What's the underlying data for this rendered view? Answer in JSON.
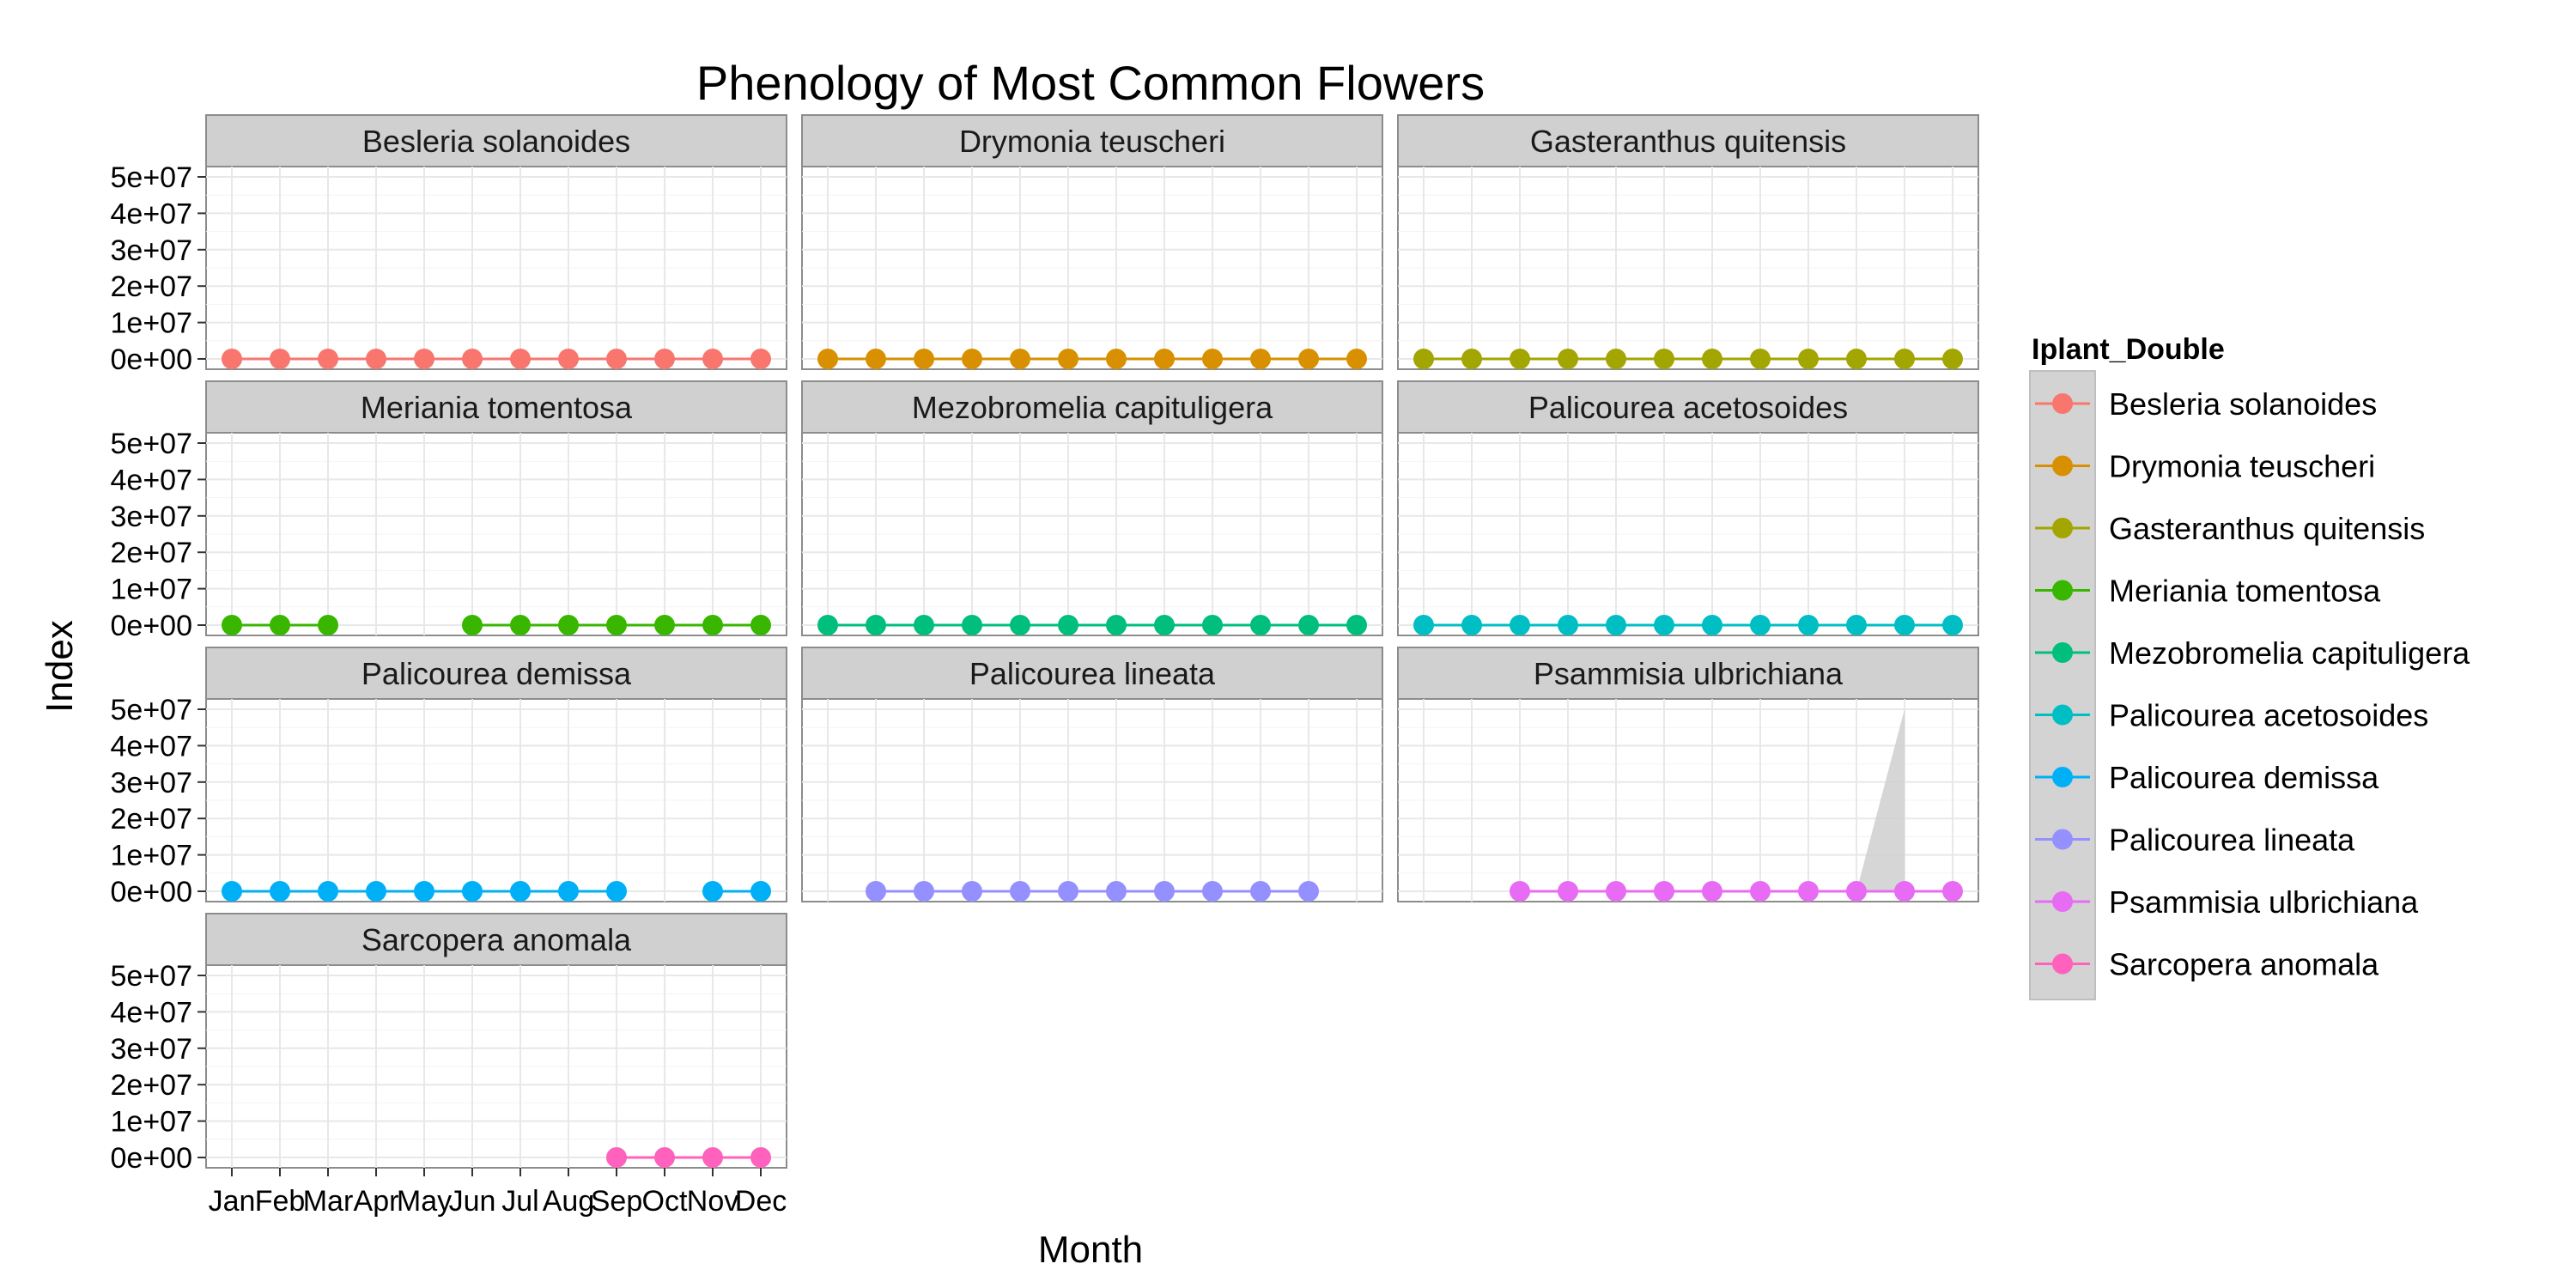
{
  "chart_data": {
    "type": "line",
    "title": "Phenology of Most Common Flowers",
    "xlabel": "Month",
    "ylabel": "Index",
    "categories": [
      "Jan",
      "Feb",
      "Mar",
      "Apr",
      "May",
      "Jun",
      "Jul",
      "Aug",
      "Sep",
      "Oct",
      "Nov",
      "Dec"
    ],
    "y_ticks": [
      "0e+00",
      "1e+07",
      "2e+07",
      "3e+07",
      "4e+07",
      "5e+07"
    ],
    "ylim": [
      0,
      50000000
    ],
    "grid": true,
    "legend": {
      "title": "Iplant_Double",
      "position": "right"
    },
    "series": [
      {
        "name": "Besleria solanoides",
        "color": "#F8766D",
        "values": [
          0,
          0,
          0,
          0,
          0,
          0,
          0,
          0,
          0,
          0,
          0,
          0
        ]
      },
      {
        "name": "Drymonia teuscheri",
        "color": "#D89000",
        "values": [
          0,
          0,
          0,
          0,
          0,
          0,
          0,
          0,
          0,
          0,
          0,
          0
        ]
      },
      {
        "name": "Gasteranthus quitensis",
        "color": "#A3A500",
        "values": [
          0,
          0,
          0,
          0,
          0,
          0,
          0,
          0,
          0,
          0,
          0,
          0
        ]
      },
      {
        "name": "Meriania tomentosa",
        "color": "#39B600",
        "values": [
          0,
          0,
          0,
          null,
          null,
          0,
          0,
          0,
          0,
          0,
          0,
          0
        ]
      },
      {
        "name": "Mezobromelia capituligera",
        "color": "#00BF7D",
        "values": [
          0,
          0,
          0,
          0,
          0,
          0,
          0,
          0,
          0,
          0,
          0,
          0
        ]
      },
      {
        "name": "Palicourea acetosoides",
        "color": "#00BFC4",
        "values": [
          0,
          0,
          0,
          0,
          0,
          0,
          0,
          0,
          0,
          0,
          0,
          0
        ]
      },
      {
        "name": "Palicourea demissa",
        "color": "#00B0F6",
        "values": [
          0,
          0,
          0,
          0,
          0,
          0,
          0,
          0,
          0,
          null,
          0,
          0
        ]
      },
      {
        "name": "Palicourea lineata",
        "color": "#9590FF",
        "values": [
          null,
          0,
          0,
          0,
          0,
          0,
          0,
          0,
          0,
          0,
          0,
          null
        ]
      },
      {
        "name": "Psammisia ulbrichiana",
        "color": "#E76BF3",
        "values": [
          null,
          null,
          0,
          0,
          0,
          0,
          0,
          0,
          0,
          0,
          0,
          0
        ],
        "ribbon": {
          "x": [
            "Oct",
            "Nov"
          ],
          "upper": [
            0,
            50000000
          ]
        }
      },
      {
        "name": "Sarcopera anomala",
        "color": "#FF62BC",
        "values": [
          null,
          null,
          null,
          null,
          null,
          null,
          null,
          null,
          0,
          0,
          0,
          0
        ]
      }
    ]
  }
}
